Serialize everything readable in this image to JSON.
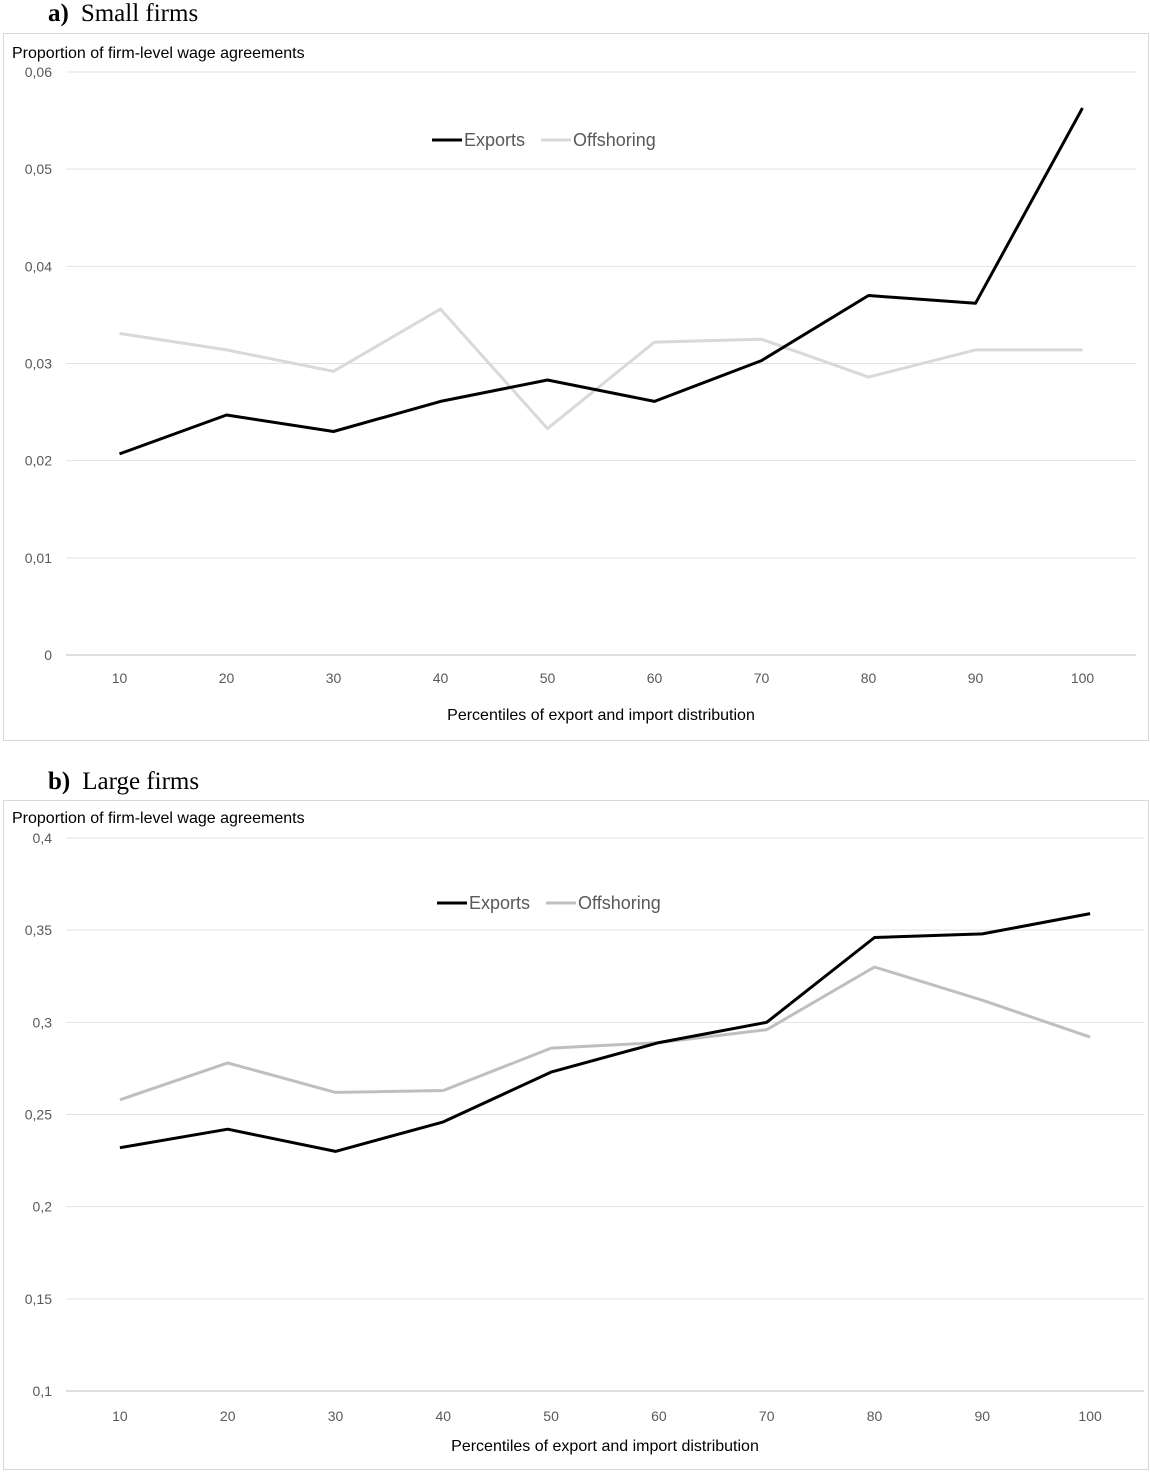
{
  "panels": [
    {
      "letter": "a)",
      "title": "Small firms"
    },
    {
      "letter": "b)",
      "title": "Large firms"
    }
  ],
  "chart_data": [
    {
      "type": "line",
      "title": "Small firms",
      "ylabel": "Proportion of firm-level wage agreements",
      "xlabel": "Percentiles of export and import distribution",
      "x": [
        10,
        20,
        30,
        40,
        50,
        60,
        70,
        80,
        90,
        100
      ],
      "ylim": [
        0,
        0.06
      ],
      "yticks": [
        0,
        0.01,
        0.02,
        0.03,
        0.04,
        0.05,
        0.06
      ],
      "ytick_labels": [
        "0",
        "0,01",
        "0,02",
        "0,03",
        "0,04",
        "0,05",
        "0,06"
      ],
      "grid": true,
      "legend_position": "top-center",
      "series": [
        {
          "name": "Exports",
          "color": "#000000",
          "values": [
            0.0207,
            0.0247,
            0.023,
            0.0261,
            0.0283,
            0.0261,
            0.0303,
            0.037,
            0.0362,
            0.0563
          ]
        },
        {
          "name": "Offshoring",
          "color": "#d9d9d9",
          "values": [
            0.0331,
            0.0314,
            0.0292,
            0.0356,
            0.0233,
            0.0322,
            0.0325,
            0.0286,
            0.0314,
            0.0314
          ]
        }
      ]
    },
    {
      "type": "line",
      "title": "Large firms",
      "ylabel": "Proportion of firm-level wage agreements",
      "xlabel": "Percentiles of export and import distribution",
      "x": [
        10,
        20,
        30,
        40,
        50,
        60,
        70,
        80,
        90,
        100
      ],
      "ylim": [
        0.1,
        0.4
      ],
      "yticks": [
        0.1,
        0.15,
        0.2,
        0.25,
        0.3,
        0.35,
        0.4
      ],
      "ytick_labels": [
        "0,1",
        "0,15",
        "0,2",
        "0,25",
        "0,3",
        "0,35",
        "0,4"
      ],
      "grid": true,
      "legend_position": "top-center",
      "series": [
        {
          "name": "Exports",
          "color": "#000000",
          "values": [
            0.232,
            0.242,
            0.23,
            0.246,
            0.273,
            0.289,
            0.3,
            0.346,
            0.348,
            0.359
          ]
        },
        {
          "name": "Offshoring",
          "color": "#bfbfbf",
          "values": [
            0.258,
            0.278,
            0.262,
            0.263,
            0.286,
            0.289,
            0.296,
            0.33,
            0.312,
            0.292
          ]
        }
      ]
    }
  ]
}
